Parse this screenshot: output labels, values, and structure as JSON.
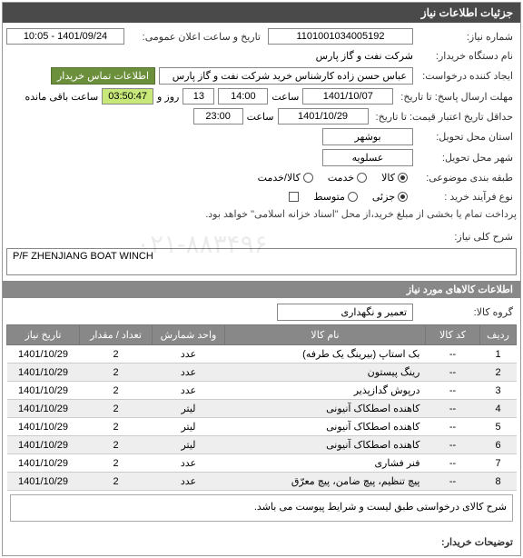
{
  "panel": {
    "title": "جزئیات اطلاعات نیاز"
  },
  "header": {
    "need_no_label": "شماره نیاز:",
    "need_no": "1101001034005192",
    "announce_label": "تاریخ و ساعت اعلان عمومی:",
    "announce_value": "1401/09/24 - 10:05",
    "buyer_label": "نام دستگاه خریدار:",
    "buyer": "شرکت نفت و گاز پارس",
    "requester_label": "ایجاد کننده درخواست:",
    "requester": "عباس حسن زاده کارشناس خرید شرکت نفت و گاز پارس",
    "contact_link": "اطلاعات تماس خریدار",
    "deadline_label": "مهلت ارسال پاسخ: تا تاریخ:",
    "deadline_date": "1401/10/07",
    "time_label": "ساعت",
    "deadline_time": "14:00",
    "days_label": "روز و",
    "days": "13",
    "timer": "03:50:47",
    "remain_label": "ساعت باقی مانده",
    "valid_label": "حداقل تاریخ اعتبار قیمت: تا تاریخ:",
    "valid_date": "1401/10/29",
    "valid_time": "23:00",
    "delivery_state_label": "استان محل تحویل:",
    "delivery_state": "بوشهر",
    "delivery_city_label": "شهر محل تحویل:",
    "delivery_city": "عسلویه",
    "cat_label": "طبقه بندی موضوعی:",
    "cat_goods": "کالا",
    "cat_service": "خدمت",
    "cat_both": "کالا/خدمت",
    "buy_type_label": "نوع فرآیند خرید :",
    "buy_partial": "جزئی",
    "buy_medium": "متوسط",
    "buy_note": "پرداخت تمام یا بخشی از مبلغ خرید،از محل \"اسناد خزانه اسلامی\" خواهد بود.",
    "subject_label": "شرح کلی نیاز:",
    "subject": "P/F ZHENJIANG BOAT WINCH"
  },
  "goods": {
    "section_title": "اطلاعات کالاهای مورد نیاز",
    "group_label": "گروه کالا:",
    "group_value": "تعمیر و نگهداری",
    "columns": {
      "row": "ردیف",
      "code": "کد کالا",
      "name": "نام کالا",
      "unit": "واحد شمارش",
      "qty": "تعداد / مقدار",
      "need_date": "تاریخ نیاز"
    },
    "rows": [
      {
        "n": "1",
        "code": "--",
        "name": "بک استاپ (بیرینگ یک طرفه)",
        "unit": "عدد",
        "qty": "2",
        "date": "1401/10/29"
      },
      {
        "n": "2",
        "code": "--",
        "name": "رینگ پیستون",
        "unit": "عدد",
        "qty": "2",
        "date": "1401/10/29"
      },
      {
        "n": "3",
        "code": "--",
        "name": "درپوش گدازپذیر",
        "unit": "عدد",
        "qty": "2",
        "date": "1401/10/29"
      },
      {
        "n": "4",
        "code": "--",
        "name": "کاهنده اصطکاک آنیونی",
        "unit": "لیتر",
        "qty": "2",
        "date": "1401/10/29"
      },
      {
        "n": "5",
        "code": "--",
        "name": "کاهنده اصطکاک آنیونی",
        "unit": "لیتر",
        "qty": "2",
        "date": "1401/10/29"
      },
      {
        "n": "6",
        "code": "--",
        "name": "کاهنده اصطکاک آنیونی",
        "unit": "لیتر",
        "qty": "2",
        "date": "1401/10/29"
      },
      {
        "n": "7",
        "code": "--",
        "name": "فنر فشاری",
        "unit": "عدد",
        "qty": "2",
        "date": "1401/10/29"
      },
      {
        "n": "8",
        "code": "--",
        "name": "پیچ تنظیم، پیچ ضامن، پیچ معرّق",
        "unit": "عدد",
        "qty": "2",
        "date": "1401/10/29"
      }
    ],
    "description": "شرح کالای درخواستی طبق لیست و  شرایط پیوست می باشد."
  },
  "footer": {
    "buyer_notes_label": "توضیحات خریدار:"
  },
  "watermark": "۰۲۱-۸۸۳۴۹۶"
}
